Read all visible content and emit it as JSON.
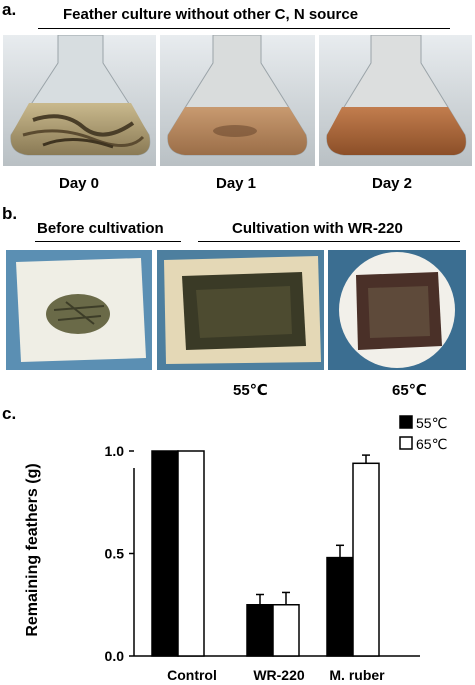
{
  "panel_a": {
    "label": "a.",
    "title": "Feather culture without other C, N source",
    "days": [
      "Day 0",
      "Day 1",
      "Day 2"
    ]
  },
  "panel_b": {
    "label": "b.",
    "before": "Before cultivation",
    "with": "Cultivation with WR-220",
    "temps": [
      "55℃",
      "65℃"
    ]
  },
  "panel_c": {
    "label": "c."
  },
  "chart_data": {
    "type": "bar",
    "categories": [
      "Control",
      "WR-220",
      "M. ruber"
    ],
    "series": [
      {
        "name": "55℃",
        "values": [
          1.0,
          0.25,
          0.48
        ],
        "errors": [
          0.0,
          0.05,
          0.06
        ],
        "color": "#000000"
      },
      {
        "name": "65℃",
        "values": [
          1.0,
          0.25,
          0.94
        ],
        "errors": [
          0.0,
          0.06,
          0.04
        ],
        "color": "#ffffff"
      }
    ],
    "ylabel": "Remaining feathers (g)",
    "yticks": [
      "0.0",
      "0.5",
      "1.0"
    ],
    "ylim": [
      0,
      1.0
    ],
    "legend_position": "top-right"
  }
}
